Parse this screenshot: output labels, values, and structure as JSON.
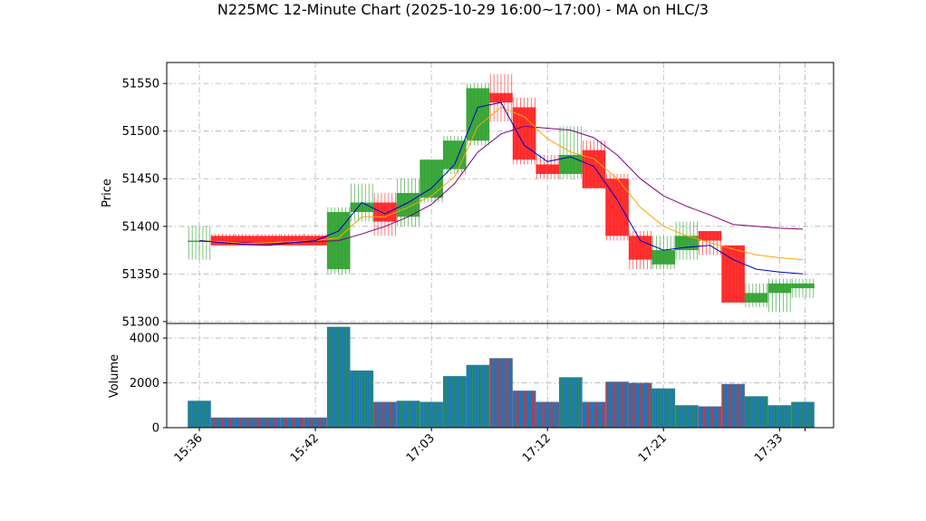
{
  "chart_data": {
    "type": "candlestick",
    "title": "N225MC 12-Minute Chart (2025-10-29 16:00~17:00) - MA on HLC/3",
    "price_panel": {
      "ylabel": "Price",
      "ylim": [
        51298,
        51572
      ],
      "yticks": [
        51300,
        51350,
        51400,
        51450,
        51500,
        51550
      ],
      "grid": true
    },
    "volume_panel": {
      "ylabel": "Volume",
      "ylim": [
        0,
        4650
      ],
      "yticks": [
        0,
        2000,
        4000
      ],
      "grid": true
    },
    "xtick_labels": [
      "15:36",
      "15:42",
      "17:03",
      "17:12",
      "17:21",
      "17:33",
      ""
    ],
    "colors": {
      "up": "#2ca02c",
      "down": "#ff2020",
      "ma_fast": "#0000cc",
      "ma_mid": "#ffa500",
      "ma_slow": "#800080",
      "volume_face": "#1f77b4",
      "grid": "#b0b0b0"
    },
    "candles": [
      {
        "open": 51385,
        "high": 51400,
        "low": 51365,
        "close": 51385,
        "volume": 1200
      },
      {
        "open": 51390,
        "high": 51392,
        "low": 51380,
        "close": 51380,
        "volume": 450
      },
      {
        "open": 51390,
        "high": 51392,
        "low": 51380,
        "close": 51380,
        "volume": 450
      },
      {
        "open": 51390,
        "high": 51392,
        "low": 51380,
        "close": 51380,
        "volume": 450
      },
      {
        "open": 51390,
        "high": 51392,
        "low": 51380,
        "close": 51380,
        "volume": 450
      },
      {
        "open": 51390,
        "high": 51392,
        "low": 51380,
        "close": 51380,
        "volume": 450
      },
      {
        "open": 51355,
        "high": 51420,
        "low": 51350,
        "close": 51415,
        "volume": 4500
      },
      {
        "open": 51415,
        "high": 51445,
        "low": 51405,
        "close": 51425,
        "volume": 2550
      },
      {
        "open": 51425,
        "high": 51435,
        "low": 51390,
        "close": 51405,
        "volume": 1150
      },
      {
        "open": 51410,
        "high": 51450,
        "low": 51400,
        "close": 51435,
        "volume": 1200
      },
      {
        "open": 51430,
        "high": 51470,
        "low": 51425,
        "close": 51470,
        "volume": 1150
      },
      {
        "open": 51460,
        "high": 51495,
        "low": 51455,
        "close": 51490,
        "volume": 2300
      },
      {
        "open": 51490,
        "high": 51550,
        "low": 51485,
        "close": 51545,
        "volume": 2800
      },
      {
        "open": 51540,
        "high": 51560,
        "low": 51510,
        "close": 51530,
        "volume": 3100
      },
      {
        "open": 51525,
        "high": 51535,
        "low": 51465,
        "close": 51470,
        "volume": 1650
      },
      {
        "open": 51465,
        "high": 51475,
        "low": 51450,
        "close": 51455,
        "volume": 1150
      },
      {
        "open": 51455,
        "high": 51505,
        "low": 51450,
        "close": 51475,
        "volume": 2250
      },
      {
        "open": 51480,
        "high": 51490,
        "low": 51440,
        "close": 51440,
        "volume": 1150
      },
      {
        "open": 51450,
        "high": 51455,
        "low": 51385,
        "close": 51390,
        "volume": 2050
      },
      {
        "open": 51390,
        "high": 51395,
        "low": 51355,
        "close": 51365,
        "volume": 2000
      },
      {
        "open": 51360,
        "high": 51390,
        "low": 51355,
        "close": 51375,
        "volume": 1750
      },
      {
        "open": 51375,
        "high": 51405,
        "low": 51365,
        "close": 51390,
        "volume": 1000
      },
      {
        "open": 51395,
        "high": 51395,
        "low": 51370,
        "close": 51385,
        "volume": 950
      },
      {
        "open": 51380,
        "high": 51380,
        "low": 51320,
        "close": 51320,
        "volume": 1950
      },
      {
        "open": 51320,
        "high": 51340,
        "low": 51315,
        "close": 51330,
        "volume": 1400
      },
      {
        "open": 51330,
        "high": 51345,
        "low": 51310,
        "close": 51340,
        "volume": 1000
      },
      {
        "open": 51335,
        "high": 51345,
        "low": 51325,
        "close": 51340,
        "volume": 1150
      }
    ],
    "ma_fast": [
      51385,
      51383,
      51381,
      51380,
      51383,
      51385,
      51395,
      51425,
      51413,
      51425,
      51440,
      51465,
      51525,
      51530,
      51485,
      51468,
      51473,
      51463,
      51428,
      51385,
      51375,
      51378,
      51380,
      51365,
      51355,
      51352,
      51350
    ],
    "ma_mid": [
      51385,
      51384,
      51382,
      51383,
      51384,
      51385,
      51388,
      51410,
      51410,
      51420,
      51432,
      51452,
      51505,
      51525,
      51515,
      51492,
      51478,
      51471,
      51450,
      51420,
      51400,
      51390,
      51383,
      51376,
      51370,
      51367,
      51365
    ],
    "ma_slow": [
      51385,
      51384,
      51383,
      51382,
      51383,
      51384,
      51385,
      51392,
      51400,
      51410,
      51423,
      51445,
      51478,
      51497,
      51505,
      51503,
      51501,
      51493,
      51475,
      51450,
      51432,
      51421,
      51412,
      51402,
      51400,
      51398,
      51397
    ]
  }
}
